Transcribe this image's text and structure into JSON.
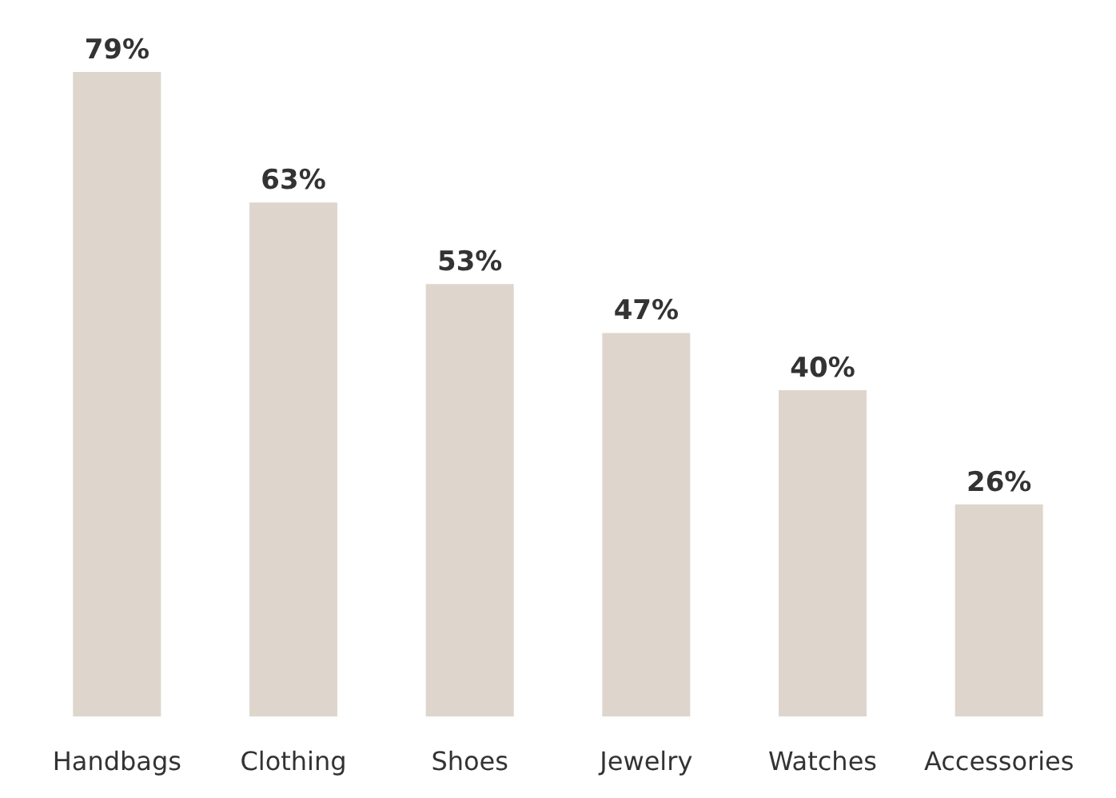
{
  "chart_data": {
    "type": "bar",
    "categories": [
      "Handbags",
      "Clothing",
      "Shoes",
      "Jewelry",
      "Watches",
      "Accessories"
    ],
    "values": [
      79,
      63,
      53,
      47,
      40,
      26
    ],
    "value_labels": [
      "79%",
      "63%",
      "53%",
      "47%",
      "40%",
      "26%"
    ],
    "color": "#ded6cd"
  }
}
